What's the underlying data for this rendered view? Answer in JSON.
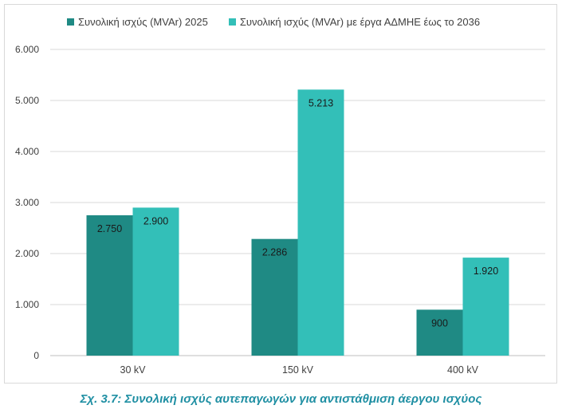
{
  "chart_data": {
    "type": "bar",
    "categories": [
      "30 kV",
      "150 kV",
      "400 kV"
    ],
    "series": [
      {
        "name": "Συνολική ισχύς (MVAr) 2025",
        "color": "#1f8a84",
        "values": [
          2750,
          2286,
          900
        ],
        "labels": [
          "2.750",
          "2.286",
          "900"
        ]
      },
      {
        "name": "Συνολική ισχύς (MVAr) με έργα ΑΔΜΗΕ έως το 2036",
        "color": "#33bfb8",
        "values": [
          2900,
          5213,
          1920
        ],
        "labels": [
          "2.900",
          "5.213",
          "1.920"
        ]
      }
    ],
    "yticks": [
      0,
      1000,
      2000,
      3000,
      4000,
      5000,
      6000
    ],
    "ytick_labels": [
      "0",
      "1.000",
      "2.000",
      "3.000",
      "4.000",
      "5.000",
      "6.000"
    ],
    "ylim": [
      0,
      6000
    ],
    "grid": true,
    "legend_position": "top-left"
  },
  "caption": "Σχ. 3.7: Συνολική ισχύς αυτεπαγωγών για αντιστάθμιση άεργου ισχύος"
}
